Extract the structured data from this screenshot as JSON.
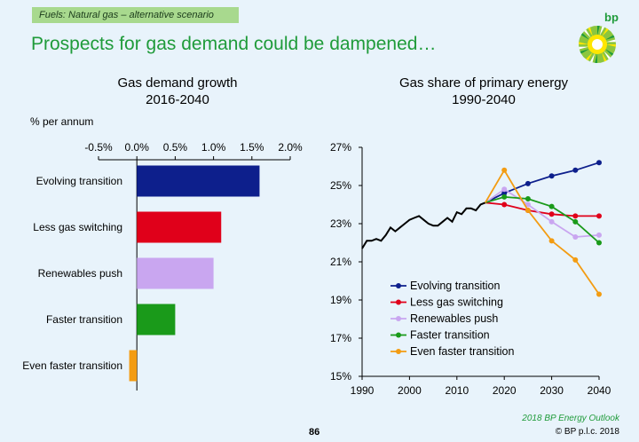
{
  "header": {
    "section_tag": "Fuels: Natural gas – alternative scenario",
    "headline": "Prospects for gas demand could be dampened…",
    "brand": "bp"
  },
  "footer": {
    "source": "2018 BP Energy Outlook",
    "copyright": "© BP p.l.c. 2018",
    "page_number": "86"
  },
  "colors": {
    "navy": "#0d1f8c",
    "red": "#e0001a",
    "lilac": "#c9a6f0",
    "green": "#1a9a1a",
    "orange": "#f39c12",
    "history": "#000000"
  },
  "chart_data": [
    {
      "type": "bar",
      "orientation": "horizontal",
      "title": "Gas demand growth",
      "subtitle": "2016-2040",
      "unit_label": "% per annum",
      "xlim": [
        -0.5,
        2.0
      ],
      "ticks": [
        "-0.5%",
        "0.0%",
        "0.5%",
        "1.0%",
        "1.5%",
        "2.0%"
      ],
      "tick_values": [
        -0.5,
        0.0,
        0.5,
        1.0,
        1.5,
        2.0
      ],
      "categories": [
        "Evolving transition",
        "Less gas switching",
        "Renewables push",
        "Faster transition",
        "Even faster transition"
      ],
      "values": [
        1.6,
        1.1,
        1.0,
        0.5,
        -0.1
      ],
      "bar_colors": [
        "#0d1f8c",
        "#e0001a",
        "#c9a6f0",
        "#1a9a1a",
        "#f39c12"
      ]
    },
    {
      "type": "line",
      "title": "Gas share of primary energy",
      "subtitle": "1990-2040",
      "xlim": [
        1990,
        2040
      ],
      "ylim": [
        15,
        27
      ],
      "x_ticks": [
        "1990",
        "2000",
        "2010",
        "2020",
        "2030",
        "2040"
      ],
      "x_tick_values": [
        1990,
        2000,
        2010,
        2020,
        2030,
        2040
      ],
      "y_ticks": [
        "27%",
        "25%",
        "23%",
        "21%",
        "19%",
        "17%",
        "15%"
      ],
      "y_tick_values": [
        27,
        25,
        23,
        21,
        19,
        17,
        15
      ],
      "history": {
        "x": [
          1990,
          1991,
          1992,
          1993,
          1994,
          1995,
          1996,
          1997,
          1998,
          1999,
          2000,
          2001,
          2002,
          2003,
          2004,
          2005,
          2006,
          2007,
          2008,
          2009,
          2010,
          2011,
          2012,
          2013,
          2014,
          2015,
          2016
        ],
        "y": [
          21.7,
          22.1,
          22.1,
          22.2,
          22.1,
          22.4,
          22.8,
          22.6,
          22.8,
          23.0,
          23.2,
          23.3,
          23.4,
          23.2,
          23.0,
          22.9,
          22.9,
          23.1,
          23.3,
          23.1,
          23.6,
          23.5,
          23.8,
          23.8,
          23.7,
          24.0,
          24.1
        ]
      },
      "x": [
        2016,
        2020,
        2025,
        2030,
        2035,
        2040
      ],
      "series": [
        {
          "name": "Evolving transition",
          "color": "#0d1f8c",
          "values": [
            24.1,
            24.6,
            25.1,
            25.5,
            25.8,
            26.2
          ]
        },
        {
          "name": "Less gas switching",
          "color": "#e0001a",
          "values": [
            24.1,
            24.0,
            23.7,
            23.5,
            23.4,
            23.4
          ]
        },
        {
          "name": "Renewables push",
          "color": "#c9a6f0",
          "values": [
            24.1,
            24.8,
            24.0,
            23.1,
            22.3,
            22.4
          ]
        },
        {
          "name": "Faster transition",
          "color": "#1a9a1a",
          "values": [
            24.1,
            24.4,
            24.3,
            23.9,
            23.1,
            22.0
          ]
        },
        {
          "name": "Even faster transition",
          "color": "#f39c12",
          "values": [
            24.1,
            25.8,
            23.7,
            22.1,
            21.1,
            19.3
          ]
        }
      ],
      "legend_position": "bottom-left"
    }
  ]
}
